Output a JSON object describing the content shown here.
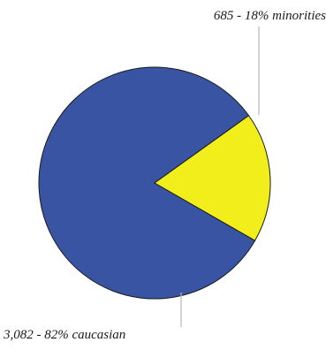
{
  "chart_data": {
    "type": "pie",
    "title": "",
    "slices": [
      {
        "label": "3,082 - 82% caucasian",
        "value": 3082,
        "percent": 82,
        "color": "#3a54a4"
      },
      {
        "label": "685 - 18% minorities",
        "value": 685,
        "percent": 18,
        "color": "#f2ee1c"
      }
    ],
    "legend": "none",
    "label_placement": "callout-leader-lines"
  }
}
